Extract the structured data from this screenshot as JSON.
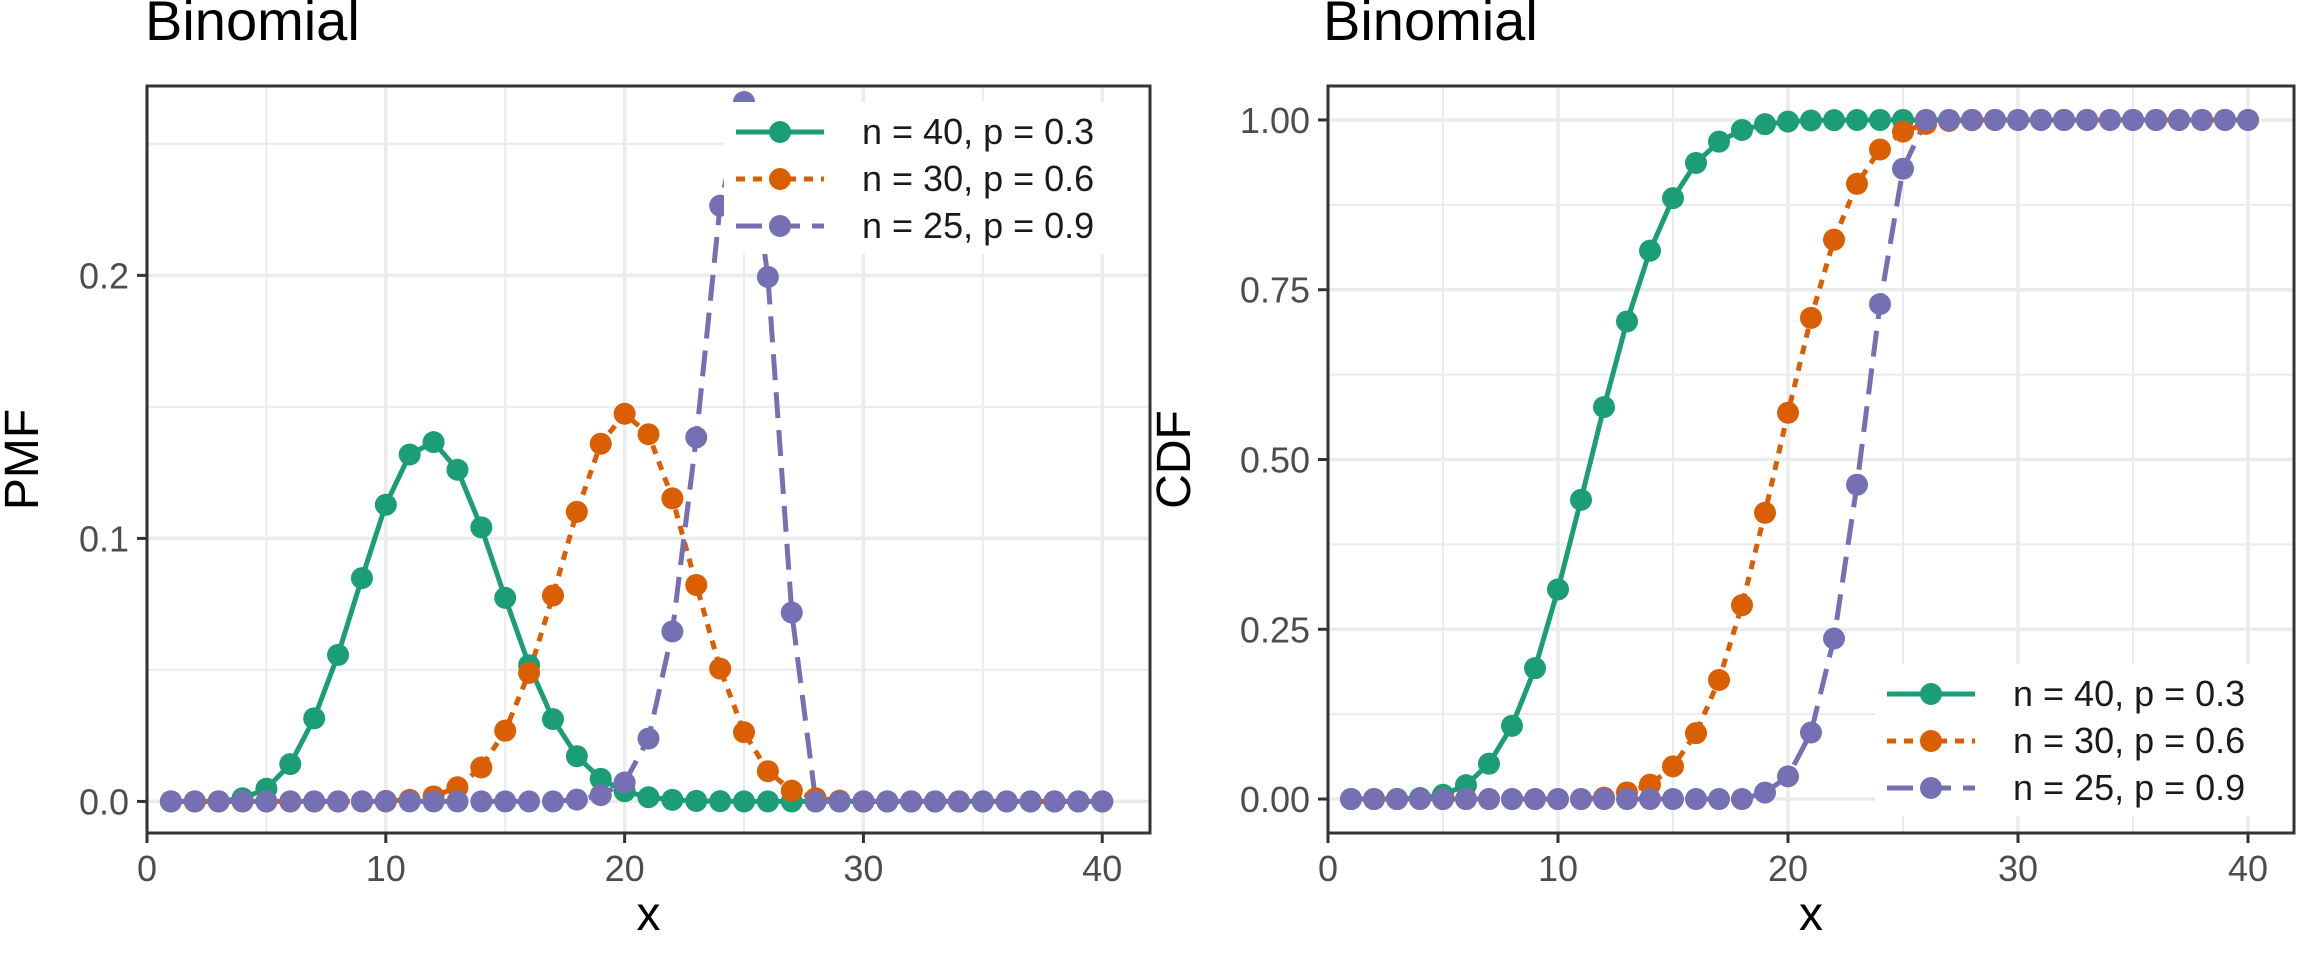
{
  "figure": {
    "panels": [
      "pmf",
      "cdf"
    ]
  },
  "chart_data": [
    {
      "type": "line",
      "id": "pmf",
      "title": "Binomial",
      "xlabel": "x",
      "ylabel": "PMF",
      "xlim": [
        0,
        42
      ],
      "ylim": [
        -0.012,
        0.272
      ],
      "xticks": [
        0,
        10,
        20,
        30,
        40
      ],
      "xtick_labels": [
        "0",
        "10",
        "20",
        "30",
        "40"
      ],
      "yticks": [
        0.0,
        0.1,
        0.2
      ],
      "ytick_labels": [
        "0.0",
        "0.1",
        "0.2"
      ],
      "grid": true,
      "legend_position": "top-right",
      "x": [
        1,
        2,
        3,
        4,
        5,
        6,
        7,
        8,
        9,
        10,
        11,
        12,
        13,
        14,
        15,
        16,
        17,
        18,
        19,
        20,
        21,
        22,
        23,
        24,
        25,
        26,
        27,
        28,
        29,
        30,
        31,
        32,
        33,
        34,
        35,
        36,
        37,
        38,
        39,
        40
      ],
      "series": [
        {
          "name": "n = 40, p = 0.3",
          "color": "#1b9e77",
          "linestyle": "solid",
          "values": [
            0.0,
            0.0,
            0.0,
            0.0012,
            0.0048,
            0.0142,
            0.0316,
            0.0557,
            0.0849,
            0.1128,
            0.1319,
            0.1366,
            0.1261,
            0.1042,
            0.0774,
            0.0518,
            0.0313,
            0.0172,
            0.0086,
            0.0039,
            0.0016,
            0.0006,
            0.0002,
            0.0001,
            0.0,
            0.0,
            0.0,
            0.0,
            0.0,
            0.0,
            0.0,
            0.0,
            0.0,
            0.0,
            0.0,
            0.0,
            0.0,
            0.0,
            0.0,
            0.0
          ]
        },
        {
          "name": "n = 30, p = 0.6",
          "color": "#d95f02",
          "linestyle": "dotted",
          "values": [
            0.0,
            0.0,
            0.0,
            0.0,
            0.0,
            0.0,
            0.0,
            0.0,
            0.0,
            0.0002,
            0.0006,
            0.0019,
            0.0054,
            0.0129,
            0.0269,
            0.0489,
            0.0783,
            0.1101,
            0.136,
            0.1474,
            0.1396,
            0.1152,
            0.0823,
            0.0505,
            0.0263,
            0.0115,
            0.0041,
            0.0012,
            0.0003,
            0.0,
            0.0,
            0.0,
            0.0,
            0.0,
            0.0,
            0.0,
            0.0,
            0.0,
            0.0,
            0.0
          ]
        },
        {
          "name": "n = 25, p = 0.9",
          "color": "#7570b3",
          "linestyle": "dashed",
          "values": [
            0.0,
            0.0,
            0.0,
            0.0,
            0.0,
            0.0,
            0.0,
            0.0,
            0.0,
            0.0,
            0.0,
            0.0,
            0.0,
            0.0,
            0.0,
            0.0,
            0.0,
            0.0007,
            0.0024,
            0.0072,
            0.0239,
            0.0646,
            0.1384,
            0.2265,
            0.2659,
            0.1994,
            0.0718,
            0.0,
            0.0,
            0.0,
            0.0,
            0.0,
            0.0,
            0.0,
            0.0,
            0.0,
            0.0,
            0.0,
            0.0,
            0.0
          ]
        }
      ]
    },
    {
      "type": "line",
      "id": "cdf",
      "title": "Binomial",
      "xlabel": "x",
      "ylabel": "CDF",
      "xlim": [
        0,
        42
      ],
      "ylim": [
        -0.05,
        1.05
      ],
      "xticks": [
        0,
        10,
        20,
        30,
        40
      ],
      "xtick_labels": [
        "0",
        "10",
        "20",
        "30",
        "40"
      ],
      "yticks": [
        0.0,
        0.25,
        0.5,
        0.75,
        1.0
      ],
      "ytick_labels": [
        "0.00",
        "0.25",
        "0.50",
        "0.75",
        "1.00"
      ],
      "grid": true,
      "legend_position": "bottom-right",
      "x": [
        1,
        2,
        3,
        4,
        5,
        6,
        7,
        8,
        9,
        10,
        11,
        12,
        13,
        14,
        15,
        16,
        17,
        18,
        19,
        20,
        21,
        22,
        23,
        24,
        25,
        26,
        27,
        28,
        29,
        30,
        31,
        32,
        33,
        34,
        35,
        36,
        37,
        38,
        39,
        40
      ],
      "series": [
        {
          "name": "n = 40, p = 0.3",
          "color": "#1b9e77",
          "linestyle": "solid",
          "values": [
            0.0,
            0.0,
            0.0,
            0.0015,
            0.0063,
            0.0205,
            0.0521,
            0.1078,
            0.1927,
            0.3087,
            0.4406,
            0.5772,
            0.7033,
            0.8075,
            0.8849,
            0.9367,
            0.968,
            0.9852,
            0.9938,
            0.9976,
            0.9992,
            0.9997,
            0.9999,
            1.0,
            1.0,
            1.0,
            1.0,
            1.0,
            1.0,
            1.0,
            1.0,
            1.0,
            1.0,
            1.0,
            1.0,
            1.0,
            1.0,
            1.0,
            1.0,
            1.0
          ]
        },
        {
          "name": "n = 30, p = 0.6",
          "color": "#d95f02",
          "linestyle": "dotted",
          "values": [
            0.0,
            0.0,
            0.0,
            0.0,
            0.0,
            0.0,
            0.0,
            0.0,
            0.0,
            0.0,
            0.0,
            0.0021,
            0.0097,
            0.0212,
            0.0481,
            0.097,
            0.1753,
            0.2855,
            0.4215,
            0.5689,
            0.7085,
            0.8237,
            0.906,
            0.9565,
            0.9828,
            0.9943,
            0.9985,
            0.9997,
            1.0,
            1.0,
            1.0,
            1.0,
            1.0,
            1.0,
            1.0,
            1.0,
            1.0,
            1.0,
            1.0,
            1.0
          ]
        },
        {
          "name": "n = 25, p = 0.9",
          "color": "#7570b3",
          "linestyle": "dashed",
          "values": [
            0.0,
            0.0,
            0.0,
            0.0,
            0.0,
            0.0,
            0.0,
            0.0,
            0.0,
            0.0,
            0.0,
            0.0,
            0.0,
            0.0,
            0.0,
            0.0,
            0.0,
            0.0,
            0.0095,
            0.0334,
            0.098,
            0.2364,
            0.4629,
            0.7288,
            0.9282,
            1.0,
            1.0,
            1.0,
            1.0,
            1.0,
            1.0,
            1.0,
            1.0,
            1.0,
            1.0,
            1.0,
            1.0,
            1.0,
            1.0,
            1.0
          ]
        }
      ]
    }
  ]
}
